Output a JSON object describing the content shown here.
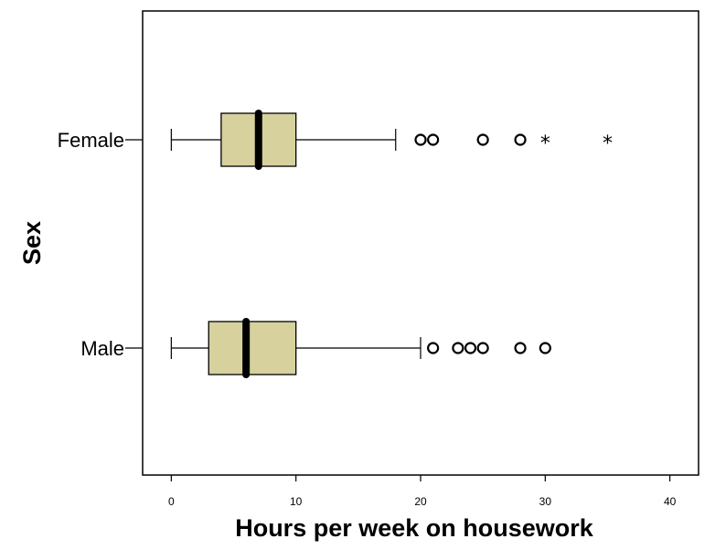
{
  "chart_data": {
    "type": "boxplot",
    "orientation": "horizontal",
    "xlabel": "Hours per week on housework",
    "ylabel": "Sex",
    "xlim": [
      -2.3,
      42.3
    ],
    "xticks": [
      0,
      10,
      20,
      30,
      40
    ],
    "xtick_labels": [
      "0",
      "10",
      "20",
      "30",
      "40"
    ],
    "grid": false,
    "legend": "none",
    "colors": {
      "box_fill": "#d6d19d",
      "stroke": "#000000",
      "background": "#ffffff"
    },
    "categories": [
      "Female",
      "Male"
    ],
    "boxes": [
      {
        "category": "Female",
        "whisker_low": 0,
        "q1": 4,
        "median": 7,
        "q3": 10,
        "whisker_high": 18,
        "outliers": [
          20,
          21,
          25,
          28
        ],
        "extremes": [
          30,
          35
        ]
      },
      {
        "category": "Male",
        "whisker_low": 0,
        "q1": 3,
        "median": 6,
        "q3": 10,
        "whisker_high": 20,
        "outliers": [
          21,
          23,
          24,
          25,
          28,
          30
        ],
        "extremes": []
      }
    ]
  }
}
